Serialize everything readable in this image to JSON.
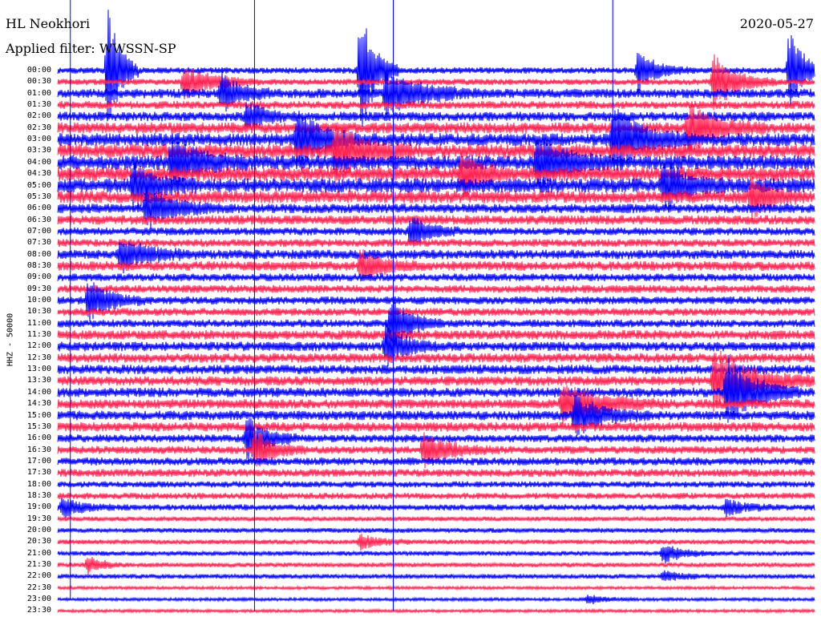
{
  "header": {
    "station": "HL Neokhori",
    "date": "2020-05-27",
    "filter": "Applied filter: WWSSN-SP"
  },
  "channel_label": "HHZ - 50000",
  "chart_data": {
    "type": "line",
    "title": "",
    "ylabel": "HHZ - 50000",
    "xlabel": "",
    "row_labels": [
      "00:00",
      "00:30",
      "01:00",
      "01:30",
      "02:00",
      "02:30",
      "03:00",
      "03:30",
      "04:00",
      "04:30",
      "05:00",
      "05:30",
      "06:00",
      "06:30",
      "07:00",
      "07:30",
      "08:00",
      "08:30",
      "09:00",
      "09:30",
      "10:00",
      "10:30",
      "11:00",
      "11:30",
      "12:00",
      "12:30",
      "13:00",
      "13:30",
      "14:00",
      "14:30",
      "15:00",
      "15:30",
      "16:00",
      "16:30",
      "17:00",
      "17:30",
      "18:00",
      "18:30",
      "19:00",
      "19:30",
      "20:00",
      "20:30",
      "21:00",
      "21:30",
      "22:00",
      "22:30",
      "23:00",
      "23:30"
    ],
    "row_colors": [
      "#0000ff",
      "#ff2050"
    ],
    "noise_level": [
      4,
      4,
      6,
      5,
      6,
      7,
      8,
      9,
      9,
      9,
      9,
      8,
      6,
      6,
      5,
      5,
      6,
      6,
      5,
      5,
      5,
      5,
      5,
      6,
      6,
      6,
      6,
      6,
      6,
      6,
      6,
      6,
      5,
      5,
      5,
      5,
      4,
      4,
      4,
      3,
      3,
      3,
      3,
      3,
      3,
      2,
      2,
      2
    ],
    "events": [
      {
        "row": 0,
        "minute": 2.0,
        "amp": 95,
        "dur": 1.2
      },
      {
        "row": 0,
        "minute": 12.0,
        "amp": 90,
        "dur": 1.5
      },
      {
        "row": 0,
        "minute": 23.0,
        "amp": 25,
        "dur": 2.0
      },
      {
        "row": 0,
        "minute": 29.0,
        "amp": 55,
        "dur": 1.5
      },
      {
        "row": 1,
        "minute": 5.0,
        "amp": 20,
        "dur": 3.0
      },
      {
        "row": 1,
        "minute": 26.0,
        "amp": 35,
        "dur": 2.5
      },
      {
        "row": 2,
        "minute": 6.5,
        "amp": 25,
        "dur": 2.0
      },
      {
        "row": 2,
        "minute": 13.0,
        "amp": 25,
        "dur": 4.0
      },
      {
        "row": 4,
        "minute": 7.5,
        "amp": 18,
        "dur": 2.0
      },
      {
        "row": 5,
        "minute": 25.0,
        "amp": 30,
        "dur": 3.0
      },
      {
        "row": 6,
        "minute": 9.5,
        "amp": 40,
        "dur": 2.5
      },
      {
        "row": 6,
        "minute": 22.0,
        "amp": 45,
        "dur": 3.0
      },
      {
        "row": 7,
        "minute": 11.0,
        "amp": 35,
        "dur": 3.0
      },
      {
        "row": 8,
        "minute": 4.5,
        "amp": 30,
        "dur": 3.0
      },
      {
        "row": 8,
        "minute": 19.0,
        "amp": 30,
        "dur": 3.0
      },
      {
        "row": 9,
        "minute": 16.0,
        "amp": 30,
        "dur": 2.0
      },
      {
        "row": 10,
        "minute": 3.0,
        "amp": 30,
        "dur": 2.5
      },
      {
        "row": 10,
        "minute": 24.0,
        "amp": 30,
        "dur": 2.5
      },
      {
        "row": 11,
        "minute": 27.5,
        "amp": 25,
        "dur": 2.0
      },
      {
        "row": 12,
        "minute": 3.5,
        "amp": 25,
        "dur": 3.0
      },
      {
        "row": 14,
        "minute": 14.0,
        "amp": 20,
        "dur": 2.0
      },
      {
        "row": 16,
        "minute": 2.5,
        "amp": 20,
        "dur": 3.0
      },
      {
        "row": 17,
        "minute": 12.0,
        "amp": 20,
        "dur": 2.5
      },
      {
        "row": 20,
        "minute": 1.2,
        "amp": 25,
        "dur": 2.5
      },
      {
        "row": 22,
        "minute": 13.2,
        "amp": 35,
        "dur": 2.0
      },
      {
        "row": 24,
        "minute": 13.0,
        "amp": 30,
        "dur": 2.0
      },
      {
        "row": 27,
        "minute": 26.0,
        "amp": 40,
        "dur": 4.0
      },
      {
        "row": 28,
        "minute": 26.5,
        "amp": 45,
        "dur": 3.0
      },
      {
        "row": 29,
        "minute": 20.0,
        "amp": 25,
        "dur": 4.0
      },
      {
        "row": 30,
        "minute": 20.5,
        "amp": 25,
        "dur": 3.0
      },
      {
        "row": 32,
        "minute": 7.5,
        "amp": 30,
        "dur": 2.0
      },
      {
        "row": 33,
        "minute": 7.8,
        "amp": 25,
        "dur": 2.0
      },
      {
        "row": 33,
        "minute": 14.5,
        "amp": 20,
        "dur": 3.0
      },
      {
        "row": 38,
        "minute": 0.2,
        "amp": 12,
        "dur": 2.0
      },
      {
        "row": 38,
        "minute": 26.5,
        "amp": 10,
        "dur": 2.0
      },
      {
        "row": 41,
        "minute": 12.0,
        "amp": 10,
        "dur": 2.0
      },
      {
        "row": 42,
        "minute": 24.0,
        "amp": 12,
        "dur": 2.0
      },
      {
        "row": 43,
        "minute": 1.2,
        "amp": 12,
        "dur": 1.5
      },
      {
        "row": 44,
        "minute": 24.0,
        "amp": 6,
        "dur": 2.0
      },
      {
        "row": 46,
        "minute": 21.0,
        "amp": 6,
        "dur": 2.0
      }
    ],
    "spikes": [
      {
        "minute": 0.5,
        "from_row": 0,
        "to_row": 46
      },
      {
        "minute": 7.8,
        "from_row": 0,
        "to_row": 47
      },
      {
        "minute": 13.3,
        "from_row": 0,
        "to_row": 47
      },
      {
        "minute": 22.0,
        "from_row": 0,
        "to_row": 6
      }
    ]
  }
}
